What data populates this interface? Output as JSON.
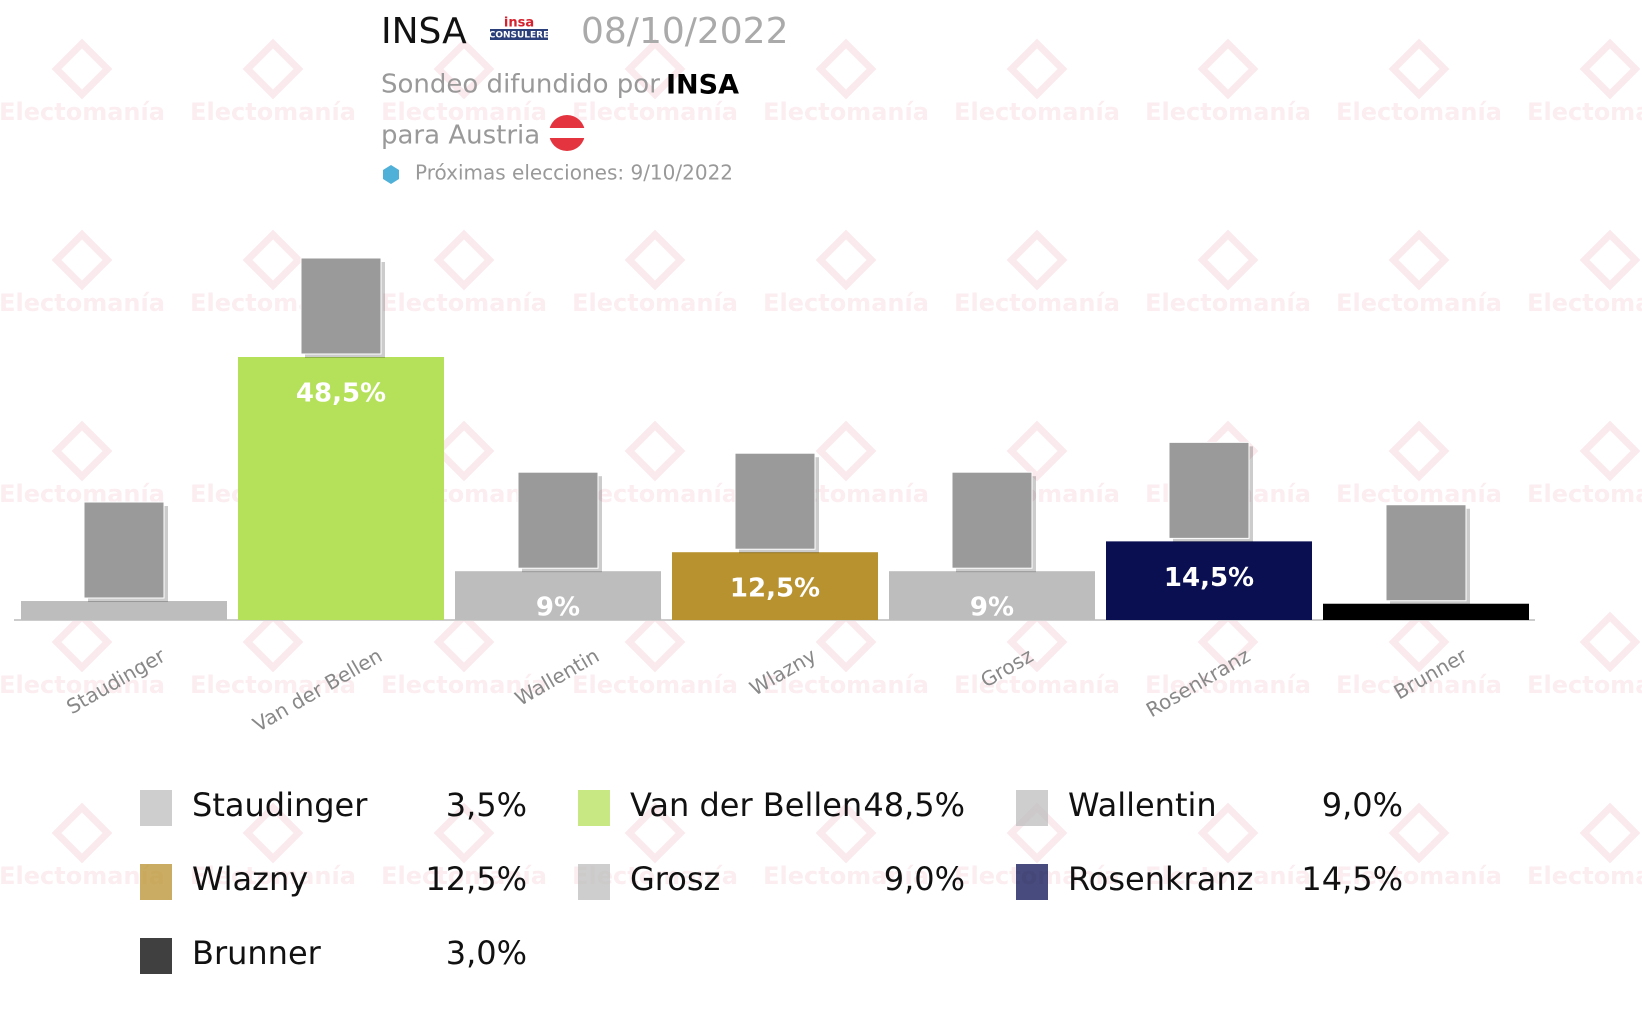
{
  "chart_data": {
    "type": "bar",
    "title": "INSA",
    "logo": {
      "top": "insa",
      "bottom": "CONSULERE"
    },
    "date": "08/10/2022",
    "source_prefix": "Sondeo difundido por",
    "source": "INSA",
    "region": "para Austria",
    "next_election": "Próximas elecciones: 9/10/2022",
    "watermark": "Electomanía",
    "categories": [
      "Staudinger",
      "Van der Bellen",
      "Wallentin",
      "Wlazny",
      "Grosz",
      "Rosenkranz",
      "Brunner"
    ],
    "values": [
      3.5,
      48.5,
      9,
      12.5,
      9,
      14.5,
      3
    ],
    "value_labels": [
      null,
      "48,5%",
      "9%",
      "12,5%",
      "9%",
      "14,5%",
      null
    ],
    "legend_labels": [
      "3,5%",
      "48,5%",
      "9,0%",
      "12,5%",
      "9,0%",
      "14,5%",
      "3,0%"
    ],
    "colors": [
      "#bdbdbd",
      "#b5e05a",
      "#bdbdbd",
      "#b8922e",
      "#bdbdbd",
      "#0a0f52",
      "#000000"
    ]
  }
}
